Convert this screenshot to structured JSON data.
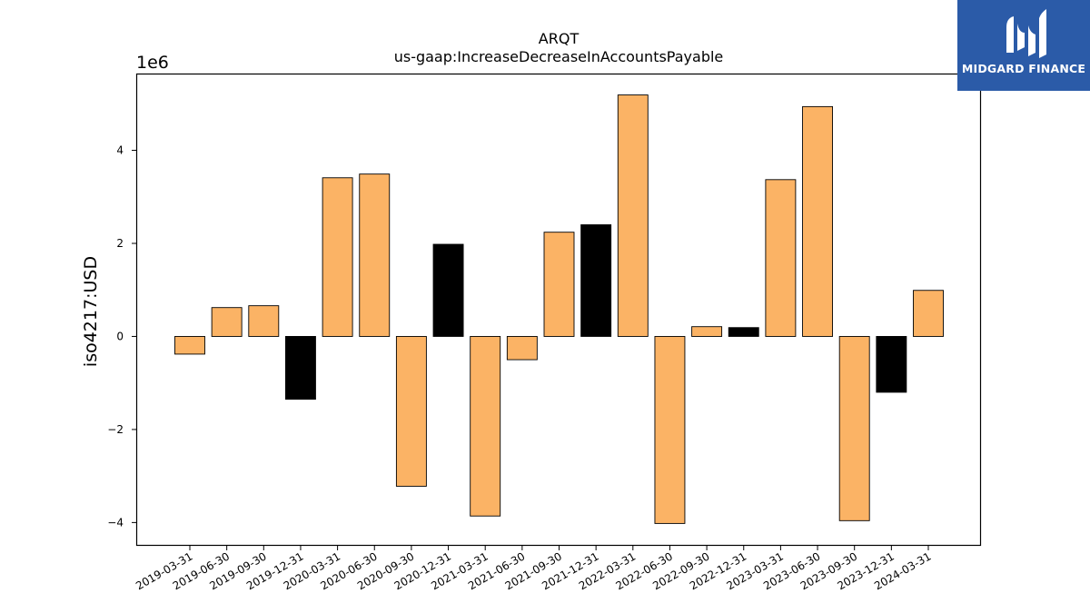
{
  "chart_data": {
    "type": "bar",
    "title": "ARQT",
    "subtitle": "us-gaap:IncreaseDecreaseInAccountsPayable",
    "ylabel": "iso4217:USD",
    "xlabel": "",
    "y_scale_label": "1e6",
    "ylim": [
      -4.5,
      5.65
    ],
    "yticks": [
      -4,
      -2,
      0,
      2,
      4
    ],
    "ytick_labels": [
      "−4",
      "−2",
      "0",
      "2",
      "4"
    ],
    "grid": false,
    "categories": [
      "2019-03-31",
      "2019-06-30",
      "2019-09-30",
      "2019-12-31",
      "2020-03-31",
      "2020-06-30",
      "2020-09-30",
      "2020-12-31",
      "2021-03-31",
      "2021-06-30",
      "2021-09-30",
      "2021-12-31",
      "2022-03-31",
      "2022-06-30",
      "2022-09-30",
      "2022-12-31",
      "2023-03-31",
      "2023-06-30",
      "2023-09-30",
      "2023-12-31",
      "2024-03-31"
    ],
    "values": [
      -0.38,
      0.62,
      0.66,
      -1.35,
      3.41,
      3.49,
      -3.22,
      1.98,
      -3.86,
      -0.5,
      2.24,
      2.4,
      5.19,
      -4.02,
      0.21,
      0.19,
      3.37,
      4.94,
      -3.96,
      -1.2,
      0.99
    ],
    "bar_colors": [
      "#fbb365",
      "#fbb365",
      "#fbb365",
      "#000000",
      "#fbb365",
      "#fbb365",
      "#fbb365",
      "#000000",
      "#fbb365",
      "#fbb365",
      "#fbb365",
      "#000000",
      "#fbb365",
      "#fbb365",
      "#fbb365",
      "#000000",
      "#fbb365",
      "#fbb365",
      "#fbb365",
      "#000000",
      "#fbb365"
    ]
  },
  "logo": {
    "text": "MIDGARD FINANCE",
    "background": "#2b5ba8"
  }
}
